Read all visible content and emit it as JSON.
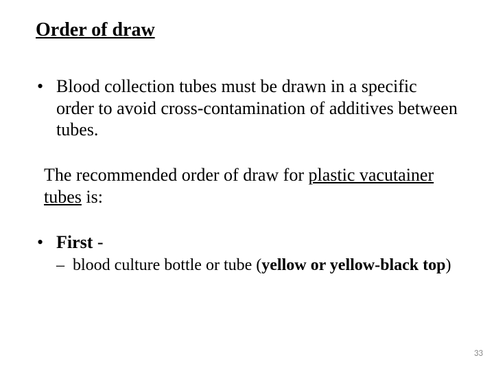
{
  "title": "Order of draw",
  "bullet1": "Blood collection tubes must be drawn in a specific order to avoid cross-contamination of additives between tubes.",
  "para_pre": "The recommended order of draw for ",
  "para_u": "plastic vacutainer tubes",
  "para_post": " is:",
  "first_label": "First",
  "first_dash": " - ",
  "sub_pre": "blood culture bottle or tube (",
  "sub_bold": "yellow or yellow-black top",
  "sub_post": ")",
  "page_number": "33",
  "colors": {
    "text": "#000000",
    "background": "#ffffff",
    "page_num": "#898989"
  },
  "fonts": {
    "body_family": "Times New Roman",
    "title_size_pt": 28,
    "body_size_pt": 26,
    "sub_size_pt": 24,
    "pagenum_size_pt": 13
  }
}
